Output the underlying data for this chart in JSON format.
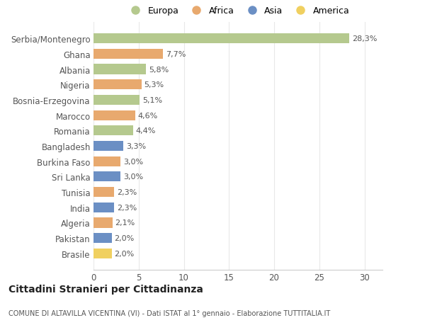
{
  "countries": [
    "Serbia/Montenegro",
    "Ghana",
    "Albania",
    "Nigeria",
    "Bosnia-Erzegovina",
    "Marocco",
    "Romania",
    "Bangladesh",
    "Burkina Faso",
    "Sri Lanka",
    "Tunisia",
    "India",
    "Algeria",
    "Pakistan",
    "Brasile"
  ],
  "values": [
    28.3,
    7.7,
    5.8,
    5.3,
    5.1,
    4.6,
    4.4,
    3.3,
    3.0,
    3.0,
    2.3,
    2.3,
    2.1,
    2.0,
    2.0
  ],
  "labels": [
    "28,3%",
    "7,7%",
    "5,8%",
    "5,3%",
    "5,1%",
    "4,6%",
    "4,4%",
    "3,3%",
    "3,0%",
    "3,0%",
    "2,3%",
    "2,3%",
    "2,1%",
    "2,0%",
    "2,0%"
  ],
  "continents": [
    "Europa",
    "Africa",
    "Europa",
    "Africa",
    "Europa",
    "Africa",
    "Europa",
    "Asia",
    "Africa",
    "Asia",
    "Africa",
    "Asia",
    "Africa",
    "Asia",
    "America"
  ],
  "colors": {
    "Europa": "#b5c98e",
    "Africa": "#e8a96e",
    "Asia": "#6b8fc4",
    "America": "#f0d060"
  },
  "xlim": [
    0,
    32
  ],
  "xticks": [
    0,
    5,
    10,
    15,
    20,
    25,
    30
  ],
  "title": "Cittadini Stranieri per Cittadinanza",
  "subtitle": "COMUNE DI ALTAVILLA VICENTINA (VI) - Dati ISTAT al 1° gennaio - Elaborazione TUTTITALIA.IT",
  "bg_color": "#ffffff",
  "grid_color": "#e8e8e8",
  "bar_height": 0.65
}
